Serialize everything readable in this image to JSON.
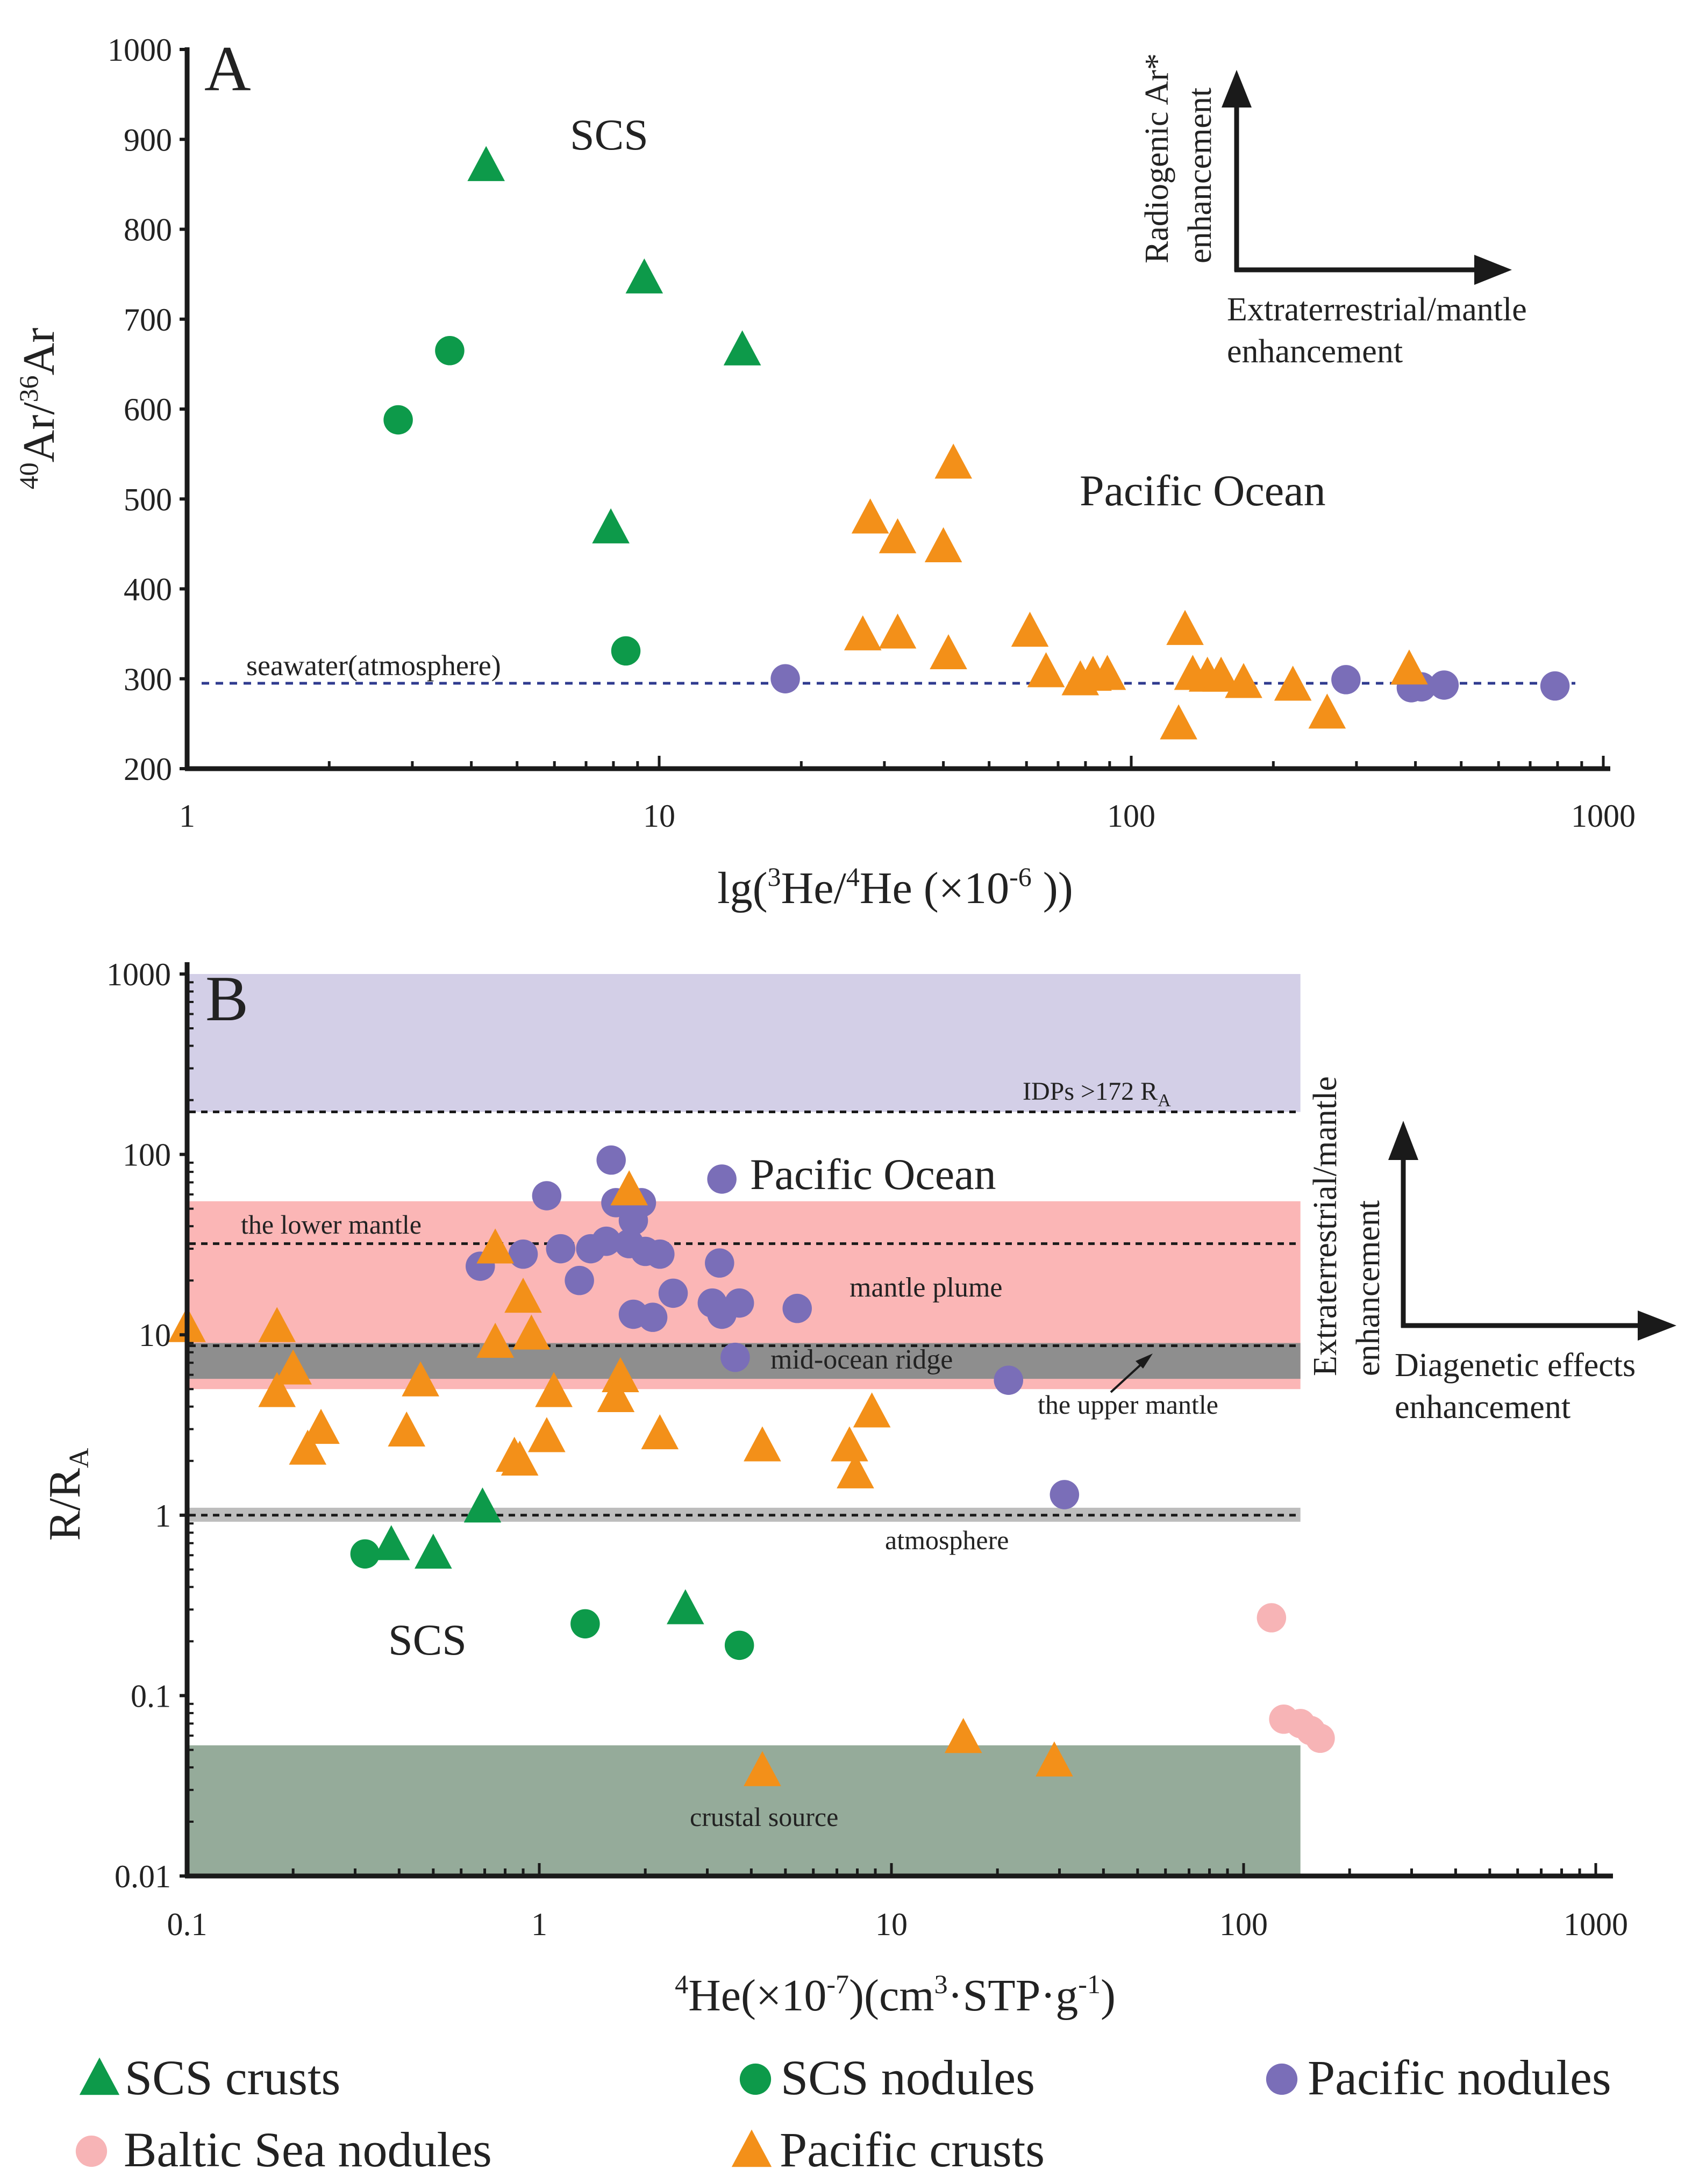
{
  "chart_data": [
    {
      "type": "scatter",
      "panel_label": "A",
      "xscale": "log",
      "xlim": [
        1,
        1000
      ],
      "ylim": [
        200,
        1000
      ],
      "xticks": [
        "1",
        "10",
        "100",
        "1000"
      ],
      "yticks": [
        "200",
        "300",
        "400",
        "500",
        "600",
        "700",
        "800",
        "900",
        "1000"
      ],
      "xlabel": {
        "prefix": "lg(",
        "sup1": "3",
        "mid": "He/",
        "sup2": "4",
        "mid2": "He (×10",
        "sup3": "-6",
        "suffix": " ))"
      },
      "ylabel": {
        "sup1": "40",
        "mid": "Ar/",
        "sup2": "36",
        "suffix": "Ar"
      },
      "reference_line": {
        "label": "seawater(atmosphere)",
        "y": 295
      },
      "region_labels": [
        "SCS",
        "Pacific Ocean"
      ],
      "arrow_labels": {
        "vertical": [
          "Radiogenic Ar*",
          "enhancement"
        ],
        "horizontal": [
          "Extraterrestrial/mantle",
          "enhancement"
        ]
      },
      "series": [
        {
          "name": "SCS crusts",
          "marker": "triangle",
          "color": "#0d9a4a",
          "points": [
            [
              4.3,
              870
            ],
            [
              9.3,
              745
            ],
            [
              15,
              665
            ],
            [
              7.9,
              467
            ]
          ]
        },
        {
          "name": "SCS nodules",
          "marker": "circle",
          "color": "#0d9a4a",
          "points": [
            [
              2.8,
              588
            ],
            [
              3.6,
              665
            ],
            [
              8.5,
              331
            ]
          ]
        },
        {
          "name": "Pacific nodules",
          "marker": "circle",
          "color": "#7a6eb8",
          "points": [
            [
              18.5,
              300
            ],
            [
              285,
              299
            ],
            [
              392,
              290
            ],
            [
              412,
              291
            ],
            [
              460,
              293
            ],
            [
              790,
              292
            ]
          ]
        },
        {
          "name": "Pacific crusts",
          "marker": "triangle",
          "color": "#f39019",
          "points": [
            [
              42,
              539
            ],
            [
              28,
              478
            ],
            [
              32,
              456
            ],
            [
              40,
              446
            ],
            [
              27,
              348
            ],
            [
              32,
              350
            ],
            [
              41,
              327
            ],
            [
              61,
              352
            ],
            [
              66,
              307
            ],
            [
              78,
              298
            ],
            [
              83,
              303
            ],
            [
              89,
              304
            ],
            [
              130,
              354
            ],
            [
              135,
              304
            ],
            [
              145,
              302
            ],
            [
              155,
              302
            ],
            [
              173,
              295
            ],
            [
              220,
              292
            ],
            [
              260,
              261
            ],
            [
              126,
              249
            ],
            [
              388,
              310
            ]
          ]
        }
      ]
    },
    {
      "type": "scatter",
      "panel_label": "B",
      "xscale": "log",
      "yscale": "log",
      "xlim": [
        0.1,
        1000
      ],
      "ylim": [
        0.01,
        1000
      ],
      "xticks": [
        "0.1",
        "1",
        "10",
        "100",
        "1000"
      ],
      "yticks": [
        "0.01",
        "0.1",
        "1",
        "10",
        "100",
        "1000"
      ],
      "xlabel": {
        "sup1": "4",
        "mid": "He(×10",
        "sup2": "-7",
        "mid2": ")(cm",
        "sup3": "3",
        "mid3": "·STP·g",
        "sup4": "-1",
        "suffix": ")"
      },
      "ylabel": {
        "main": "R/R",
        "sub": "A"
      },
      "bands": [
        {
          "name": "IDPs",
          "y_range": [
            172,
            1000
          ],
          "color": "#d3cfe7"
        },
        {
          "name": "mantle plume",
          "y_range": [
            5,
            55
          ],
          "color": "#fbb6b6"
        },
        {
          "name": "mid-ocean ridge",
          "y_range": [
            5.7,
            9
          ],
          "color": "#8e8e8e"
        },
        {
          "name": "atmosphere",
          "y_range": [
            0.92,
            1.1
          ],
          "color": "#bdbdbd"
        },
        {
          "name": "crustal source",
          "y_range": [
            0.01,
            0.053
          ],
          "color": "#95ab9a"
        }
      ],
      "band_x_max": 145,
      "reference_lines": [
        {
          "label": "IDPs >172 R",
          "label_sub": "A",
          "y": 172
        },
        {
          "label": "the lower mantle",
          "y": 32
        },
        {
          "label": "the upper mantle",
          "y": 8.7
        },
        {
          "label": "atmosphere",
          "y": 1
        }
      ],
      "band_labels": {
        "mantle_plume": "mantle plume",
        "mid_ocean_ridge": "mid-ocean ridge",
        "crustal_source": "crustal source"
      },
      "region_labels": [
        "Pacific Ocean",
        "SCS"
      ],
      "arrow_labels": {
        "vertical": [
          "Extraterrestrial/mantle",
          "enhancement"
        ],
        "horizontal": [
          "Diagenetic effects",
          "enhancement"
        ]
      },
      "series": [
        {
          "name": "SCS crusts",
          "marker": "triangle",
          "color": "#0d9a4a",
          "points": [
            [
              0.38,
              0.68
            ],
            [
              0.5,
              0.61
            ],
            [
              0.69,
              1.1
            ],
            [
              2.6,
              0.3
            ]
          ]
        },
        {
          "name": "SCS nodules",
          "marker": "circle",
          "color": "#0d9a4a",
          "points": [
            [
              0.32,
              0.61
            ],
            [
              1.35,
              0.25
            ],
            [
              3.7,
              0.19
            ]
          ]
        },
        {
          "name": "Pacific nodules",
          "marker": "circle",
          "color": "#7a6eb8",
          "points": [
            [
              1.6,
              93
            ],
            [
              1.05,
              59
            ],
            [
              1.65,
              54
            ],
            [
              1.95,
              54
            ],
            [
              0.68,
              24
            ],
            [
              0.9,
              28
            ],
            [
              1.15,
              30
            ],
            [
              1.4,
              30
            ],
            [
              1.55,
              33
            ],
            [
              1.8,
              32
            ],
            [
              2.0,
              29
            ],
            [
              2.2,
              28
            ],
            [
              1.85,
              43
            ],
            [
              1.3,
              20
            ],
            [
              1.85,
              13
            ],
            [
              2.1,
              12.5
            ],
            [
              2.4,
              17
            ],
            [
              3.1,
              15
            ],
            [
              3.3,
              13
            ],
            [
              3.7,
              15
            ],
            [
              3.25,
              25
            ],
            [
              5.4,
              14
            ],
            [
              3.6,
              7.5
            ],
            [
              21.5,
              5.6
            ],
            [
              31,
              1.3
            ],
            [
              3.3,
              73
            ]
          ]
        },
        {
          "name": "Pacific crusts",
          "marker": "triangle",
          "color": "#f39019",
          "points": [
            [
              1.8,
              63
            ],
            [
              0.1,
              11
            ],
            [
              0.18,
              11
            ],
            [
              0.2,
              6.4
            ],
            [
              0.18,
              4.8
            ],
            [
              0.22,
              2.3
            ],
            [
              0.24,
              3
            ],
            [
              0.46,
              5.5
            ],
            [
              0.42,
              2.9
            ],
            [
              0.75,
              30
            ],
            [
              0.75,
              9
            ],
            [
              0.9,
              16
            ],
            [
              0.95,
              10
            ],
            [
              0.85,
              2.1
            ],
            [
              0.88,
              2
            ],
            [
              1.1,
              4.8
            ],
            [
              1.05,
              2.7
            ],
            [
              1.7,
              5.8
            ],
            [
              1.65,
              4.5
            ],
            [
              2.2,
              2.8
            ],
            [
              4.3,
              2.4
            ],
            [
              7.6,
              2.4
            ],
            [
              7.9,
              1.7
            ],
            [
              8.8,
              3.7
            ],
            [
              4.3,
              0.038
            ],
            [
              16,
              0.058
            ],
            [
              29,
              0.043
            ]
          ]
        },
        {
          "name": "Baltic Sea nodules",
          "marker": "circle",
          "color": "#f7b4b6",
          "points": [
            [
              120,
              0.27
            ],
            [
              130,
              0.074
            ],
            [
              145,
              0.07
            ],
            [
              155,
              0.064
            ],
            [
              165,
              0.058
            ]
          ]
        }
      ]
    }
  ],
  "legend": [
    {
      "label": "SCS crusts",
      "marker": "triangle",
      "color": "#0d9a4a"
    },
    {
      "label": "SCS nodules",
      "marker": "circle",
      "color": "#0d9a4a"
    },
    {
      "label": "Pacific nodules",
      "marker": "circle",
      "color": "#7a6eb8"
    },
    {
      "label": "Baltic Sea nodules",
      "marker": "circle",
      "color": "#f7b4b6"
    },
    {
      "label": "Pacific crusts",
      "marker": "triangle",
      "color": "#f39019"
    }
  ]
}
